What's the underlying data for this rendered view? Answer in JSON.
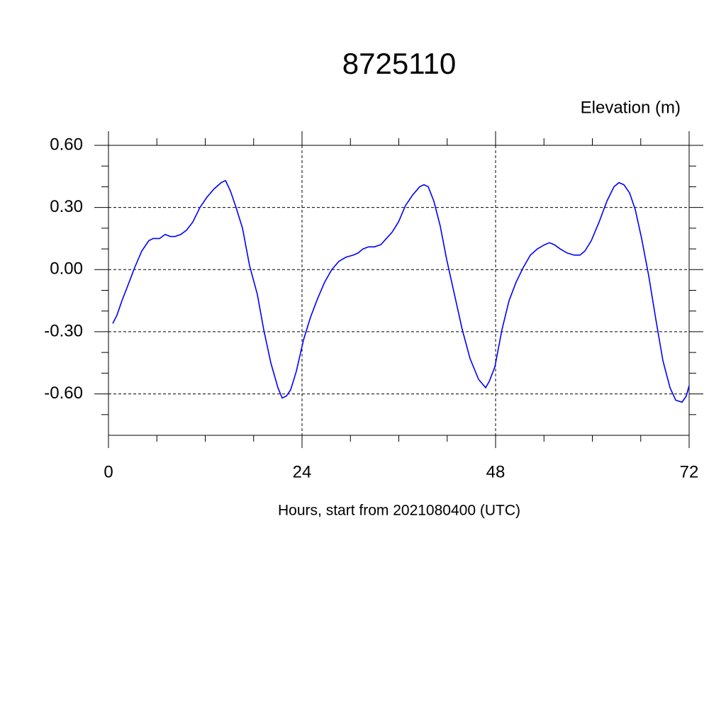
{
  "chart_data": {
    "type": "line",
    "title": "8725110",
    "subtitle": "Elevation (m)",
    "x_label": "Hours, start from 2021080400 (UTC)",
    "xlim": [
      0,
      72
    ],
    "xticks": [
      0,
      24,
      48,
      72
    ],
    "x_minor_ticks": [
      6,
      12,
      18,
      30,
      36,
      42,
      54,
      60,
      66
    ],
    "ylim": [
      -0.8,
      0.6
    ],
    "yticks": [
      {
        "value": 0.6,
        "label": "0.60"
      },
      {
        "value": 0.3,
        "label": "0.30"
      },
      {
        "value": 0,
        "label": "0.00"
      },
      {
        "value": -0.3,
        "label": "-0.30"
      },
      {
        "value": -0.6,
        "label": "-0.60"
      }
    ],
    "y_minor_ticks": [
      0.5,
      0.4,
      0.2,
      0.1,
      -0.1,
      -0.2,
      -0.4,
      -0.5,
      -0.7
    ],
    "grid": true,
    "series": [
      {
        "color": "#0000ff",
        "x": [
          0.53,
          1.05,
          1.67,
          2.37,
          3.25,
          4.13,
          5.01,
          5.54,
          6.33,
          7.03,
          7.65,
          8.26,
          8.97,
          9.67,
          10.46,
          11.34,
          12.22,
          13.1,
          13.98,
          14.51,
          15.12,
          15.82,
          16.62,
          17.49,
          18.46,
          19.25,
          20.13,
          21.01,
          21.54,
          22.07,
          22.59,
          23.3,
          24.18,
          25.05,
          25.93,
          26.81,
          27.69,
          28.57,
          29.45,
          30.33,
          30.95,
          31.56,
          32.26,
          32.97,
          33.76,
          34.46,
          35.16,
          35.96,
          36.84,
          37.71,
          38.59,
          39.12,
          39.65,
          40.35,
          41.14,
          41.93,
          42.9,
          43.87,
          44.84,
          45.89,
          46.77,
          47.21,
          47.91,
          48.79,
          49.67,
          50.55,
          51.43,
          52.31,
          53.19,
          54.07,
          54.68,
          55.3,
          56.0,
          56.88,
          57.76,
          58.46,
          59.08,
          59.87,
          60.84,
          61.8,
          62.68,
          63.3,
          63.91,
          64.62,
          65.32,
          66.11,
          66.99,
          67.87,
          68.75,
          69.63,
          70.33,
          71.12,
          71.65,
          72.0
        ],
        "values": [
          -0.26,
          -0.22,
          -0.15,
          -0.08,
          0.01,
          0.09,
          0.14,
          0.15,
          0.15,
          0.17,
          0.16,
          0.16,
          0.17,
          0.19,
          0.23,
          0.3,
          0.35,
          0.39,
          0.42,
          0.43,
          0.38,
          0.3,
          0.2,
          0.02,
          -0.12,
          -0.29,
          -0.45,
          -0.57,
          -0.62,
          -0.61,
          -0.58,
          -0.49,
          -0.34,
          -0.23,
          -0.14,
          -0.06,
          0.0,
          0.04,
          0.06,
          0.07,
          0.08,
          0.1,
          0.11,
          0.11,
          0.12,
          0.15,
          0.18,
          0.23,
          0.31,
          0.36,
          0.4,
          0.41,
          0.4,
          0.33,
          0.21,
          0.05,
          -0.12,
          -0.29,
          -0.43,
          -0.53,
          -0.57,
          -0.54,
          -0.47,
          -0.29,
          -0.15,
          -0.06,
          0.01,
          0.07,
          0.1,
          0.12,
          0.13,
          0.12,
          0.1,
          0.08,
          0.07,
          0.07,
          0.09,
          0.14,
          0.23,
          0.33,
          0.4,
          0.42,
          0.41,
          0.37,
          0.29,
          0.15,
          -0.03,
          -0.24,
          -0.44,
          -0.57,
          -0.63,
          -0.64,
          -0.61,
          -0.56
        ]
      }
    ]
  }
}
